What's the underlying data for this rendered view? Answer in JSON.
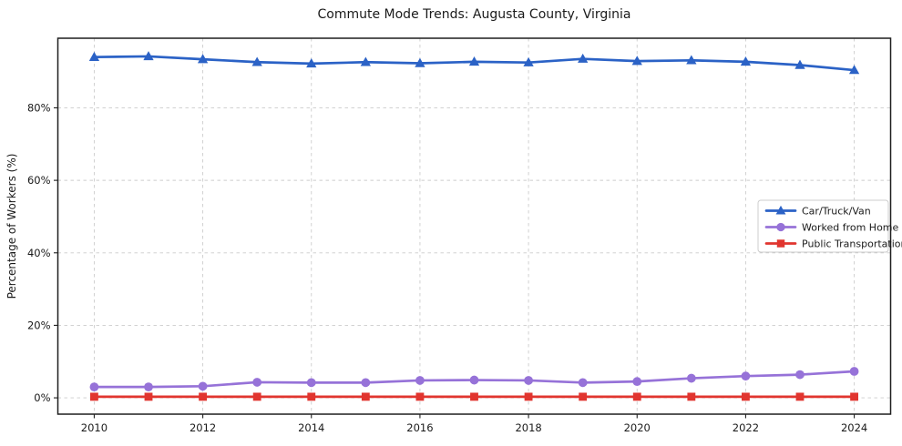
{
  "figure": {
    "background": "#ffffff",
    "plot_background": "#ffffff",
    "spine_color": "#1f1f1f",
    "grid_color": "#cccccc",
    "text_color": "#1a1a1a"
  },
  "chart_data": {
    "type": "line",
    "title": "Commute Mode Trends: Augusta County, Virginia",
    "xlabel": "",
    "ylabel": "Percentage of Workers (%)",
    "x": [
      2010,
      2011,
      2012,
      2013,
      2014,
      2015,
      2016,
      2017,
      2018,
      2019,
      2020,
      2021,
      2022,
      2023,
      2024
    ],
    "x_ticks": [
      2010,
      2012,
      2014,
      2016,
      2018,
      2020,
      2022,
      2024
    ],
    "x_tick_labels": [
      "2010",
      "2012",
      "2014",
      "2016",
      "2018",
      "2020",
      "2022",
      "2024"
    ],
    "y_ticks": [
      0,
      20,
      40,
      60,
      80
    ],
    "y_tick_labels": [
      "0%",
      "20%",
      "40%",
      "60%",
      "80%"
    ],
    "xlim": [
      2009.33,
      2024.67
    ],
    "ylim": [
      -4.5,
      99.2
    ],
    "grid": true,
    "grid_style": "dashed",
    "legend_position": "center right",
    "series": [
      {
        "name": "Car/Truck/Van",
        "color": "#2b62c6",
        "marker": "triangle",
        "values": [
          94.0,
          94.2,
          93.4,
          92.6,
          92.2,
          92.6,
          92.3,
          92.7,
          92.5,
          93.5,
          92.9,
          93.1,
          92.7,
          91.8,
          90.4
        ]
      },
      {
        "name": "Worked from Home",
        "color": "#9672d8",
        "marker": "circle",
        "values": [
          3.0,
          3.0,
          3.2,
          4.3,
          4.2,
          4.2,
          4.8,
          4.9,
          4.8,
          4.2,
          4.5,
          5.4,
          6.0,
          6.4,
          7.3
        ]
      },
      {
        "name": "Public Transportation",
        "color": "#e1352f",
        "marker": "square",
        "values": [
          0.3,
          0.3,
          0.3,
          0.3,
          0.3,
          0.3,
          0.3,
          0.3,
          0.3,
          0.3,
          0.3,
          0.3,
          0.3,
          0.3,
          0.3
        ]
      }
    ]
  }
}
